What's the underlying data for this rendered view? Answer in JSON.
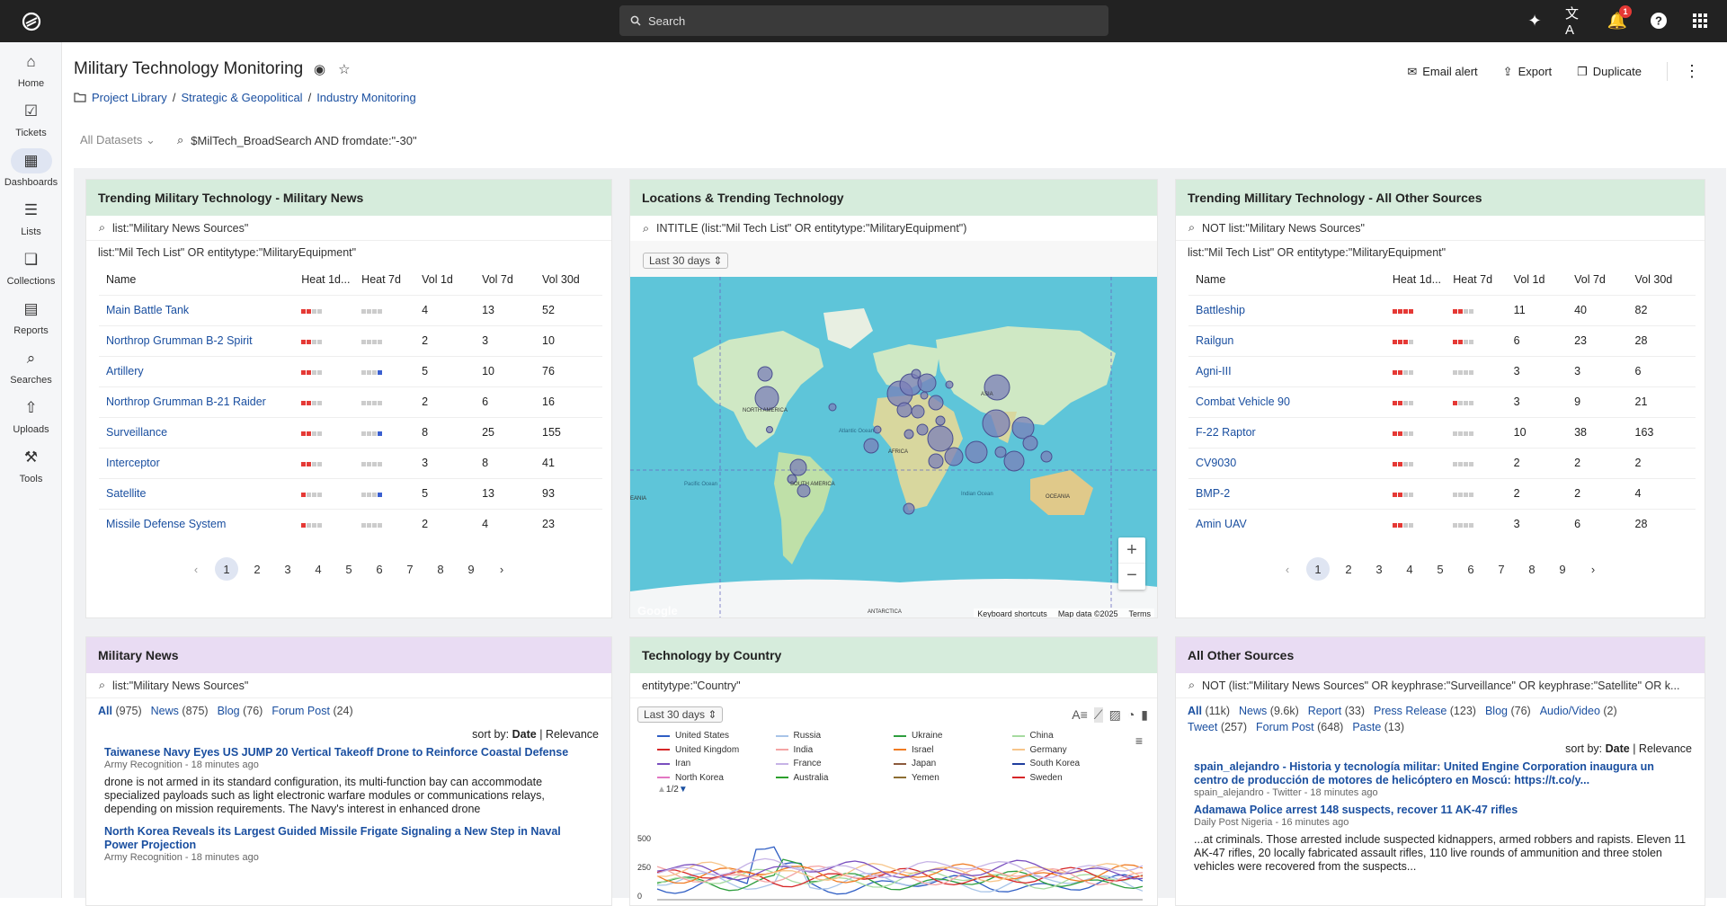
{
  "topbar": {
    "search_placeholder": "Search",
    "notif_count": "1"
  },
  "sidebar": [
    {
      "label": "Home",
      "icon": "home-icon"
    },
    {
      "label": "Tickets",
      "icon": "ticket-icon"
    },
    {
      "label": "Dashboards",
      "icon": "dashboard-icon",
      "active": true
    },
    {
      "label": "Lists",
      "icon": "list-icon"
    },
    {
      "label": "Collections",
      "icon": "collection-icon"
    },
    {
      "label": "Reports",
      "icon": "report-icon"
    },
    {
      "label": "Searches",
      "icon": "search-icon"
    },
    {
      "label": "Uploads",
      "icon": "upload-icon"
    },
    {
      "label": "Tools",
      "icon": "tools-icon"
    }
  ],
  "page": {
    "title": "Military Technology Monitoring",
    "crumb1": "Project Library",
    "crumb2": "Strategic & Geopolitical",
    "crumb3": "Industry Monitoring",
    "sep": "/"
  },
  "actions": {
    "email": "Email alert",
    "export": "Export",
    "duplicate": "Duplicate"
  },
  "filter": {
    "datasets": "All Datasets",
    "query": "$MilTech_BroadSearch AND fromdate:\"-30\""
  },
  "panel1": {
    "title": "Trending Military Technology - Military News",
    "query1": "list:\"Military News Sources\"",
    "query2": "list:\"Mil Tech List\" OR entitytype:\"MilitaryEquipment\"",
    "cols": [
      "Name",
      "Heat 1d...",
      "Heat 7d",
      "Vol 1d",
      "Vol 7d",
      "Vol 30d"
    ],
    "rows": [
      {
        "name": "Main Battle Tank",
        "v1": "4",
        "v7": "13",
        "v30": "52"
      },
      {
        "name": "Northrop Grumman B-2 Spirit",
        "v1": "2",
        "v7": "3",
        "v30": "10"
      },
      {
        "name": "Artillery",
        "v1": "5",
        "v7": "10",
        "v30": "76"
      },
      {
        "name": "Northrop Grumman B-21 Raider",
        "v1": "2",
        "v7": "6",
        "v30": "16"
      },
      {
        "name": "Surveillance",
        "v1": "8",
        "v7": "25",
        "v30": "155"
      },
      {
        "name": "Interceptor",
        "v1": "3",
        "v7": "8",
        "v30": "41"
      },
      {
        "name": "Satellite",
        "v1": "5",
        "v7": "13",
        "v30": "93"
      },
      {
        "name": "Missile Defense System",
        "v1": "2",
        "v7": "4",
        "v30": "23"
      }
    ],
    "pages": [
      "1",
      "2",
      "3",
      "4",
      "5",
      "6",
      "7",
      "8",
      "9"
    ]
  },
  "panel2": {
    "title": "Locations & Trending Technology",
    "query": "INTITLE (list:\"Mil Tech List\" OR entitytype:\"MilitaryEquipment\")",
    "range": "Last 30 days",
    "map_labels": {
      "na": "NORTH AMERICA",
      "sa": "SOUTH AMERICA",
      "af": "AFRICA",
      "as": "ASIA",
      "oc": "OCEANIA",
      "ant": "ANTARCTICA",
      "eania": "EANIA",
      "atl": "Atlantic Ocean",
      "ind": "Indian Ocean",
      "pac": "Pacific Ocean"
    },
    "map_footer": {
      "google": "Google",
      "shortcuts": "Keyboard shortcuts",
      "mapdata": "Map data ©2025",
      "terms": "Terms"
    }
  },
  "panel3": {
    "title": "Trending Millitary Technology - All Other Sources",
    "query1": "NOT list:\"Military News Sources\"",
    "query2": "list:\"Mil Tech List\" OR entitytype:\"MilitaryEquipment\"",
    "cols": [
      "Name",
      "Heat 1d...",
      "Heat 7d",
      "Vol 1d",
      "Vol 7d",
      "Vol 30d"
    ],
    "rows": [
      {
        "name": "Battleship",
        "v1": "11",
        "v7": "40",
        "v30": "82"
      },
      {
        "name": "Railgun",
        "v1": "6",
        "v7": "23",
        "v30": "28"
      },
      {
        "name": "Agni-III",
        "v1": "3",
        "v7": "3",
        "v30": "6"
      },
      {
        "name": "Combat Vehicle 90",
        "v1": "3",
        "v7": "9",
        "v30": "21"
      },
      {
        "name": "F-22 Raptor",
        "v1": "10",
        "v7": "38",
        "v30": "163"
      },
      {
        "name": "CV9030",
        "v1": "2",
        "v7": "2",
        "v30": "2"
      },
      {
        "name": "BMP-2",
        "v1": "2",
        "v7": "2",
        "v30": "4"
      },
      {
        "name": "Amin UAV",
        "v1": "3",
        "v7": "6",
        "v30": "28"
      }
    ],
    "pages": [
      "1",
      "2",
      "3",
      "4",
      "5",
      "6",
      "7",
      "8",
      "9"
    ]
  },
  "panel4": {
    "title": "Military News",
    "query": "list:\"Military News Sources\"",
    "filters": [
      {
        "label": "All",
        "count": "(975)"
      },
      {
        "label": "News",
        "count": "(875)"
      },
      {
        "label": "Blog",
        "count": "(76)"
      },
      {
        "label": "Forum Post",
        "count": "(24)"
      }
    ],
    "sort_label": "sort by:",
    "sort_date": "Date",
    "sort_rel": "Relevance",
    "items": [
      {
        "title": "Taiwanese Navy Eyes US JUMP 20 Vertical Takeoff Drone to Reinforce Coastal Defense",
        "meta": "Army Recognition - 18 minutes ago",
        "body": "drone is not armed in its standard configuration, its multi-function bay can accommodate specialized payloads such as light electronic warfare modules or communications relays, depending on mission requirements. The Navy's interest in enhanced drone"
      },
      {
        "title": "North Korea Reveals its Largest Guided Missile Frigate Signaling a New Step in Naval Power Projection",
        "meta": "Army Recognition - 18 minutes ago",
        "body": ""
      }
    ]
  },
  "panel5": {
    "title": "Technology by Country",
    "query": "entitytype:\"Country\"",
    "range": "Last 30 days",
    "legend": [
      {
        "name": "United States",
        "color": "#2f5ec4"
      },
      {
        "name": "Russia",
        "color": "#a8c4e8"
      },
      {
        "name": "Ukraine",
        "color": "#2e9e3e"
      },
      {
        "name": "China",
        "color": "#a6dba0"
      },
      {
        "name": "United Kingdom",
        "color": "#d62728"
      },
      {
        "name": "India",
        "color": "#f4a4a4"
      },
      {
        "name": "Israel",
        "color": "#f07b22"
      },
      {
        "name": "Germany",
        "color": "#f7c58a"
      },
      {
        "name": "Iran",
        "color": "#7a4fbf"
      },
      {
        "name": "France",
        "color": "#c6b3e6"
      },
      {
        "name": "Japan",
        "color": "#8c5a3c"
      },
      {
        "name": "South Korea",
        "color": "#1f3d9e"
      },
      {
        "name": "North Korea",
        "color": "#e377c2"
      },
      {
        "name": "Australia",
        "color": "#2ca02c"
      },
      {
        "name": "Yemen",
        "color": "#8c6d31"
      },
      {
        "name": "Sweden",
        "color": "#d62728"
      }
    ],
    "legend_page": "1/2",
    "yticks": [
      "500",
      "250",
      "0"
    ]
  },
  "panel6": {
    "title": "All Other Sources",
    "query": "NOT (list:\"Military News Sources\" OR keyphrase:\"Surveillance\" OR keyphrase:\"Satellite\" OR k...",
    "filters": [
      {
        "label": "All",
        "count": "(11k)"
      },
      {
        "label": "News",
        "count": "(9.6k)"
      },
      {
        "label": "Report",
        "count": "(33)"
      },
      {
        "label": "Press Release",
        "count": "(123)"
      },
      {
        "label": "Blog",
        "count": "(76)"
      },
      {
        "label": "Audio/Video",
        "count": "(2)"
      },
      {
        "label": "Tweet",
        "count": "(257)"
      },
      {
        "label": "Forum Post",
        "count": "(648)"
      },
      {
        "label": "Paste",
        "count": "(13)"
      }
    ],
    "sort_label": "sort by:",
    "sort_date": "Date",
    "sort_rel": "Relevance",
    "items": [
      {
        "title": "spain_alejandro - Historia y tecnología militar: United Engine Corporation inaugura un centro de producción de motores de helicóptero en Moscú: https://t.co/y...",
        "meta": "spain_alejandro - Twitter - 18 minutes ago",
        "body": ""
      },
      {
        "title": "Adamawa Police arrest 148 suspects, recover 11 AK-47 rifles",
        "meta": "Daily Post Nigeria - 16 minutes ago",
        "body": "...at criminals. Those arrested include suspected kidnappers, armed robbers and rapists. Eleven 11 AK-47 rifles, 20 locally fabricated assault rifles, 110 live rounds of ammunition and three stolen vehicles were recovered from the suspects..."
      }
    ]
  }
}
